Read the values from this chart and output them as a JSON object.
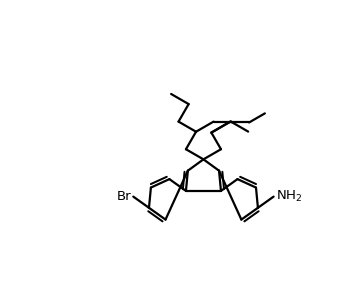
{
  "bg_color": "#ffffff",
  "line_color": "#000000",
  "line_width": 1.6,
  "font_size": 9.5,
  "figsize": [
    3.4,
    3.08
  ],
  "dpi": 100,
  "xlim": [
    -0.25,
    1.0
  ],
  "ylim": [
    -0.05,
    1.05
  ]
}
